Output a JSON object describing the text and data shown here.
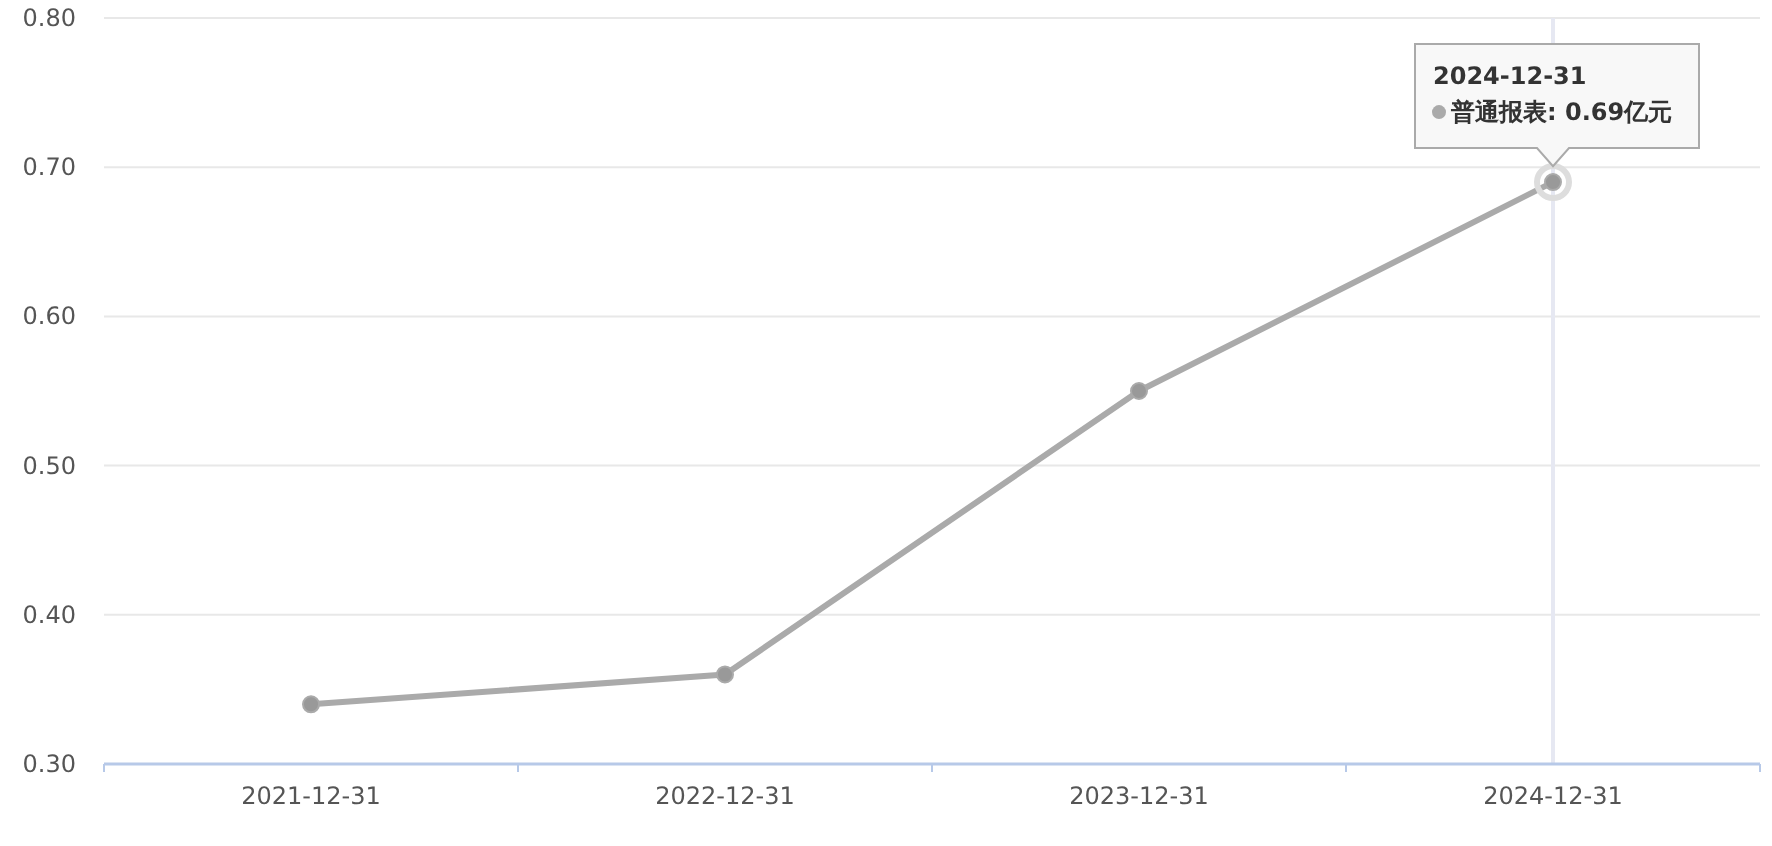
{
  "chart_data": {
    "type": "line",
    "categories": [
      "2021-12-31",
      "2022-12-31",
      "2023-12-31",
      "2024-12-31"
    ],
    "series": [
      {
        "color": "#aaaaaa",
        "values": [
          0.34,
          0.36,
          0.55,
          0.69
        ]
      }
    ],
    "ylim": [
      0.3,
      0.8
    ],
    "yticks": [
      {
        "value": 0.3,
        "label": "0.30"
      },
      {
        "value": 0.4,
        "label": "0.40"
      },
      {
        "value": 0.5,
        "label": "0.50"
      },
      {
        "value": 0.6,
        "label": "0.60"
      },
      {
        "value": 0.7,
        "label": "0.70"
      },
      {
        "value": 0.8,
        "label": "0.80"
      }
    ],
    "grid": "y",
    "marker": "circle",
    "line_style": "solid",
    "ref_lines": [
      {
        "axis": "x",
        "value": "2024-12-31",
        "color": "#e6e8f2"
      }
    ],
    "annotations": [
      {
        "text": "2024-12-31\n普通报表: 0.69亿元",
        "x": "2024-12-31",
        "y": 0.69
      }
    ]
  }
}
